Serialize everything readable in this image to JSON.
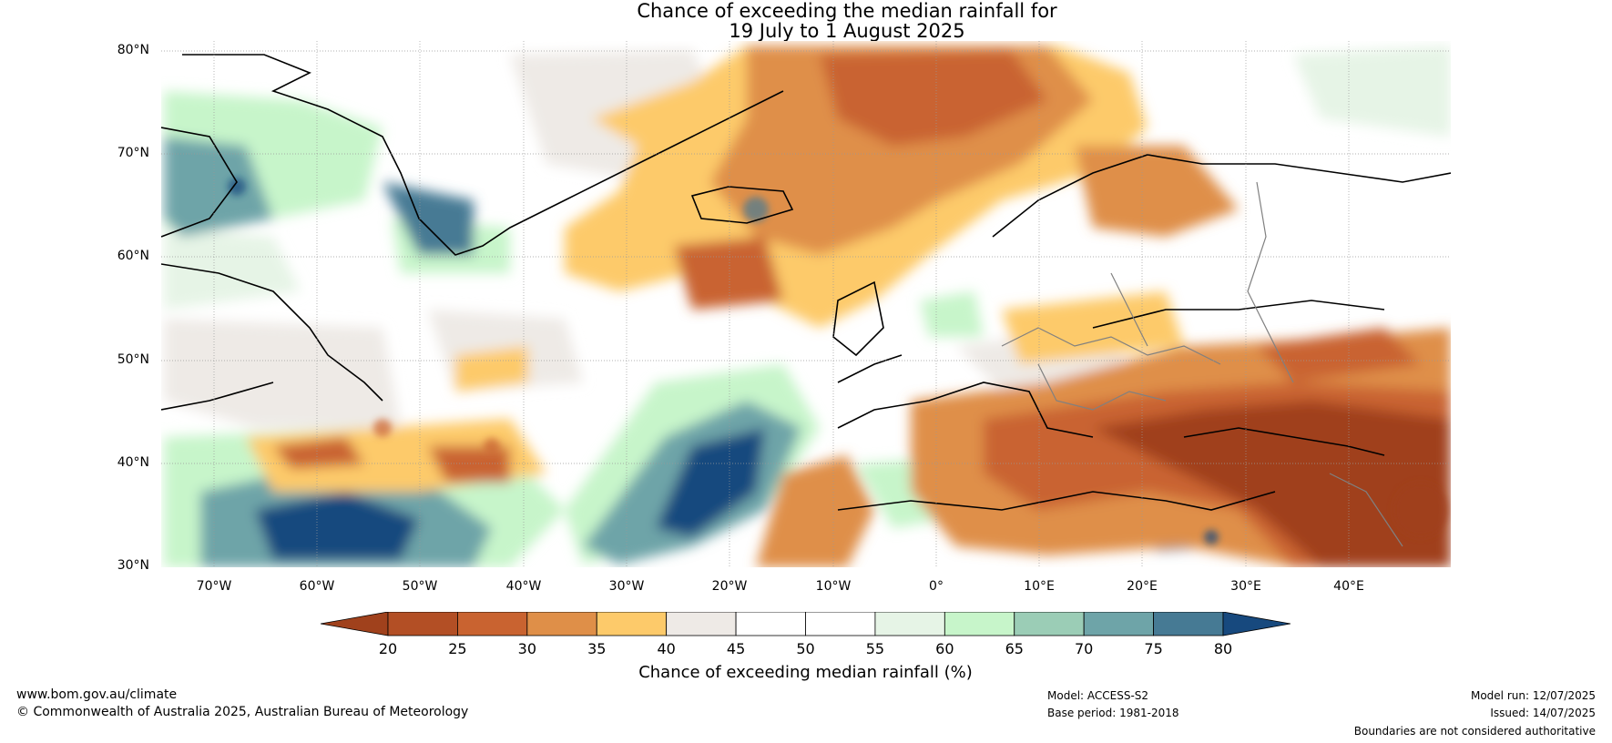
{
  "title": {
    "line1": "Chance of exceeding the median rainfall for",
    "line2": "19 July to 1 August 2025"
  },
  "map": {
    "latitude_labels": [
      "80°N",
      "70°N",
      "60°N",
      "50°N",
      "40°N",
      "30°N"
    ],
    "longitude_labels": [
      "70°W",
      "60°W",
      "50°W",
      "40°W",
      "30°W",
      "20°W",
      "10°W",
      "0°",
      "10°E",
      "20°E",
      "30°E",
      "40°E"
    ],
    "extent": {
      "lon_min": -75,
      "lon_max": 50,
      "lat_min": 30,
      "lat_max": 81
    },
    "ocean_color": "#ffffff",
    "coastline_color": "#000000",
    "border_color": "#808080"
  },
  "colorbar": {
    "ticks": [
      "20",
      "25",
      "30",
      "35",
      "40",
      "45",
      "50",
      "55",
      "60",
      "65",
      "70",
      "75",
      "80"
    ],
    "colors": [
      "#a0411c",
      "#b34f25",
      "#c96330",
      "#df8f48",
      "#fdca6a",
      "#eeeae6",
      "#ffffff",
      "#ffffff",
      "#e6f4e6",
      "#c7f5ca",
      "#9bcdb6",
      "#6ea4a8",
      "#467a94",
      "#17497e"
    ],
    "label": "Chance of exceeding median rainfall (%)"
  },
  "footer": {
    "website": "www.bom.gov.au/climate",
    "copyright": "© Commonwealth of Australia 2025, Australian Bureau of Meteorology",
    "model": "Model: ACCESS-S2",
    "base_period": "Base period: 1981-2018",
    "model_run": "Model run: 12/07/2025",
    "issued": "Issued: 14/07/2025",
    "disclaimer": "Boundaries are not considered authoritative"
  }
}
